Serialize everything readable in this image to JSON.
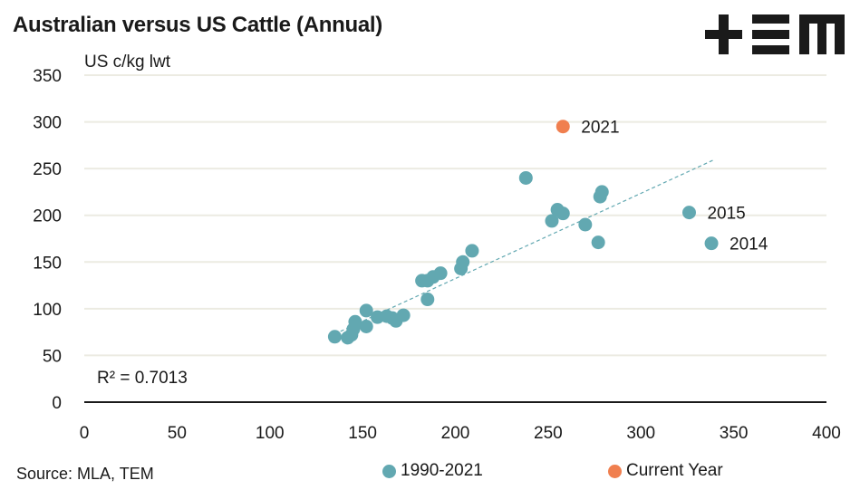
{
  "header": {
    "title": "Australian versus US Cattle (Annual)",
    "logo_text": "+EM",
    "y_unit": "US c/kg lwt"
  },
  "footer": {
    "source": "Source: MLA, TEM"
  },
  "colors": {
    "series_main": "#62A8B1",
    "series_current": "#F07F4F",
    "gridline": "#ECEBE2",
    "axis": "#1a1a1a",
    "trendline": "#62A8B1"
  },
  "chart_data": {
    "type": "scatter",
    "title": "Australian versus US Cattle (Annual)",
    "xlabel": "",
    "ylabel": "US c/kg lwt",
    "xlim": [
      0,
      400
    ],
    "ylim": [
      0,
      350
    ],
    "x_ticks": [
      0,
      50,
      100,
      150,
      200,
      250,
      300,
      350,
      400
    ],
    "y_ticks": [
      0,
      50,
      100,
      150,
      200,
      250,
      300,
      350
    ],
    "grid": "horizontal",
    "legend_position": "bottom",
    "series": [
      {
        "name": "1990-2021",
        "color": "#62A8B1",
        "points": [
          [
            135,
            70
          ],
          [
            142,
            69
          ],
          [
            144,
            72
          ],
          [
            145,
            78
          ],
          [
            146,
            86
          ],
          [
            152,
            98
          ],
          [
            152,
            81
          ],
          [
            158,
            91
          ],
          [
            163,
            92
          ],
          [
            166,
            90
          ],
          [
            168,
            87
          ],
          [
            172,
            93
          ],
          [
            182,
            130
          ],
          [
            185,
            130
          ],
          [
            185,
            110
          ],
          [
            188,
            134
          ],
          [
            192,
            138
          ],
          [
            203,
            143
          ],
          [
            204,
            150
          ],
          [
            209,
            162
          ],
          [
            238,
            240
          ],
          [
            252,
            194
          ],
          [
            255,
            206
          ],
          [
            258,
            202
          ],
          [
            279,
            225
          ],
          [
            278,
            220
          ],
          [
            270,
            190
          ],
          [
            277,
            171
          ],
          [
            326,
            203
          ],
          [
            338,
            170
          ]
        ]
      },
      {
        "name": "Current Year",
        "color": "#F07F4F",
        "points": [
          [
            258,
            295
          ]
        ]
      }
    ],
    "trendline": {
      "type": "linear",
      "x_range": [
        135,
        340
      ],
      "y_range": [
        73,
        260
      ],
      "style": "dashed",
      "label": "R² = 0.7013"
    },
    "annotations": [
      {
        "text": "2021",
        "x": 258,
        "y": 295
      },
      {
        "text": "2015",
        "x": 326,
        "y": 203
      },
      {
        "text": "2014",
        "x": 338,
        "y": 170
      }
    ]
  }
}
